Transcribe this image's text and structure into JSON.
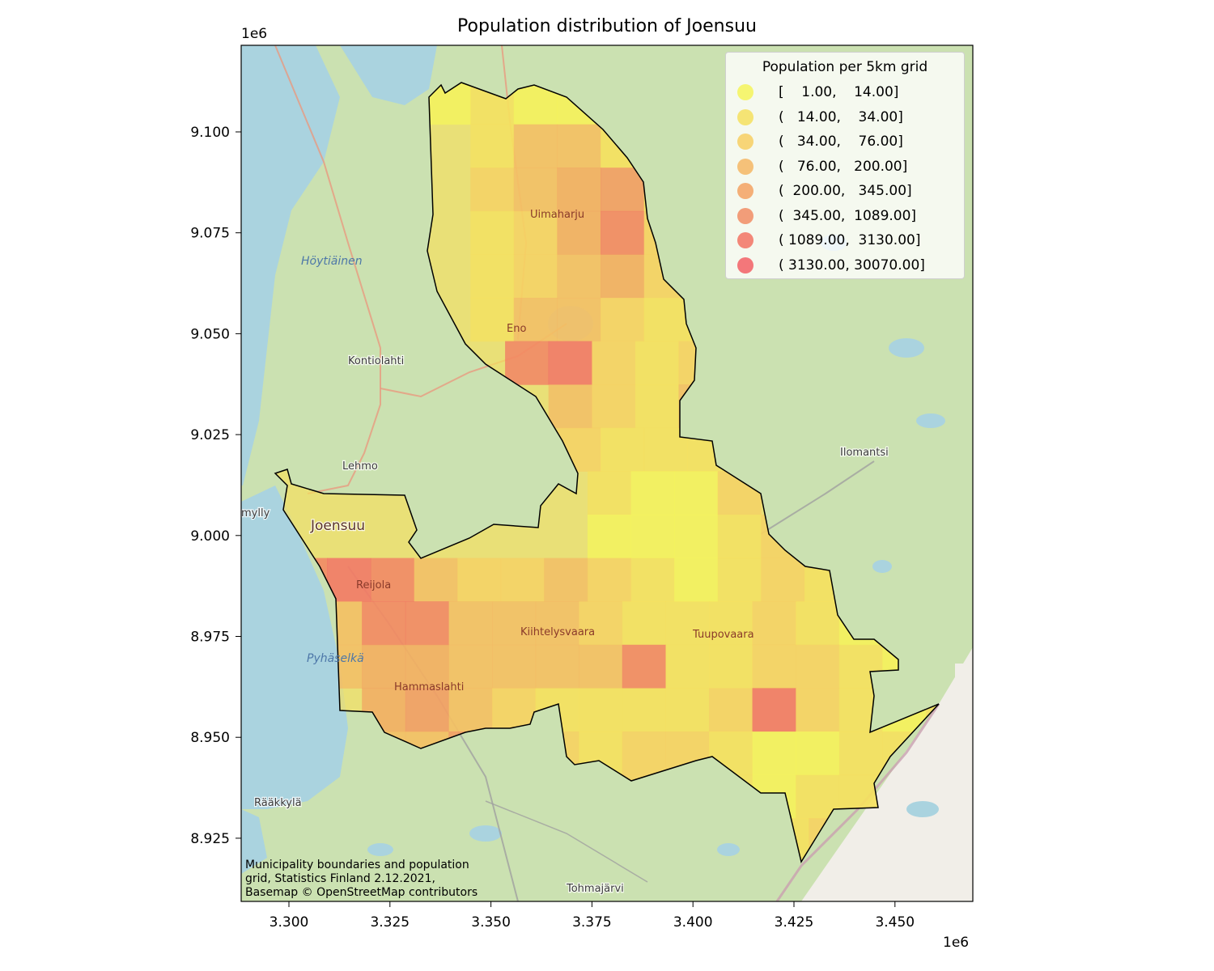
{
  "title": "Population distribution of Joensuu",
  "x_offset_label": "1e6",
  "y_offset_label": "1e6",
  "credit": [
    "Municipality boundaries and population",
    "grid, Statistics Finland 2.12.2021,",
    "Basemap © OpenStreetMap contributors"
  ],
  "axes": {
    "x_ticks": [
      "3.300",
      "3.325",
      "3.350",
      "3.375",
      "3.400",
      "3.425",
      "3.450"
    ],
    "y_ticks": [
      "9.100",
      "9.075",
      "9.050",
      "9.025",
      "9.000",
      "8.975",
      "8.950",
      "8.925"
    ]
  },
  "legend": {
    "title": "Population per 5km grid",
    "items": [
      {
        "label": "[    1.00,    14.00]",
        "color": "#f5f55a"
      },
      {
        "label": "(   14.00,    34.00]",
        "color": "#f5e05e"
      },
      {
        "label": "(   34.00,    76.00]",
        "color": "#f7cf62"
      },
      {
        "label": "(   76.00,   200.00]",
        "color": "#f4b764"
      },
      {
        "label": "(  200.00,   345.00]",
        "color": "#f3a261"
      },
      {
        "label": "(  345.00,  1089.00]",
        "color": "#f18d64"
      },
      {
        "label": "( 1089.00,  3130.00]",
        "color": "#f27363"
      },
      {
        "label": "( 3130.00, 30070.00]",
        "color": "#f26065"
      }
    ]
  },
  "places": {
    "hoytiainen": "Höytiäinen",
    "kontiolahti": "Kontiolahti",
    "lehmo": "Lehmo",
    "mylly": "mylly",
    "joensuu": "Joensuu",
    "reijola": "Reijola",
    "pyhaselka": "Pyhäselkä",
    "hammaslahti": "Hammaslahti",
    "raakkyla": "Rääkkylä",
    "tohmajarvi": "Tohmajärvi",
    "uimaharju": "Uimaharju",
    "eno": "Eno",
    "ilomantsi": "Ilomantsi",
    "kiihtelysvaara": "Kiihtelysvaara",
    "tuupovaara": "Tuupovaara"
  },
  "colors": {
    "water": "#aad3df",
    "forest": "#c2dca7",
    "boundary": "#000000"
  }
}
